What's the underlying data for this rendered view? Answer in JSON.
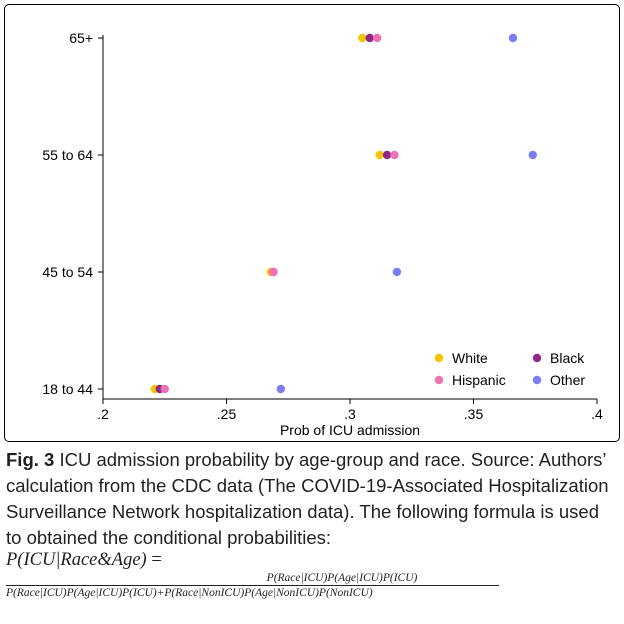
{
  "chart_data": {
    "type": "scatter",
    "xlabel": "Prob of ICU admission",
    "xlim": [
      0.2,
      0.4
    ],
    "x_ticks": [
      {
        "value": 0.2,
        "label": ".2"
      },
      {
        "value": 0.25,
        "label": ".25"
      },
      {
        "value": 0.3,
        "label": ".3"
      },
      {
        "value": 0.35,
        "label": ".35"
      },
      {
        "value": 0.4,
        "label": ".4"
      }
    ],
    "categories": [
      "18 to 44",
      "45 to 54",
      "55 to 64",
      "65+"
    ],
    "grid": false,
    "legend_position": "bottom-right",
    "series": [
      {
        "name": "White",
        "color": "#f5c400",
        "values": [
          0.221,
          0.268,
          0.312,
          0.305
        ]
      },
      {
        "name": "Black",
        "color": "#8e2a86",
        "values": [
          0.223,
          0.269,
          0.315,
          0.308
        ]
      },
      {
        "name": "Hispanic",
        "color": "#f072b6",
        "values": [
          0.225,
          0.269,
          0.318,
          0.311
        ]
      },
      {
        "name": "Other",
        "color": "#7b7ef2",
        "values": [
          0.272,
          0.319,
          0.374,
          0.366
        ]
      }
    ]
  },
  "caption": {
    "fig_number": "Fig. 3",
    "text": " ICU admission probability by age-group and race. Source: Authors’ calculation from the CDC data (The COVID-19-Associated Hospitalization Surveillance Network hospitalization data). The following formula is used to obtained the conditional probabilities:"
  },
  "formula": {
    "lhs": "P(ICU|Race&Age)",
    "equals": " =",
    "numerator": "P(Race|ICU)P(Age|ICU)P(ICU)",
    "denominator": "P(Race|ICU)P(Age|ICU)P(ICU)+P(Race|NonICU)P(Age|NonICU)P(NonICU)"
  }
}
